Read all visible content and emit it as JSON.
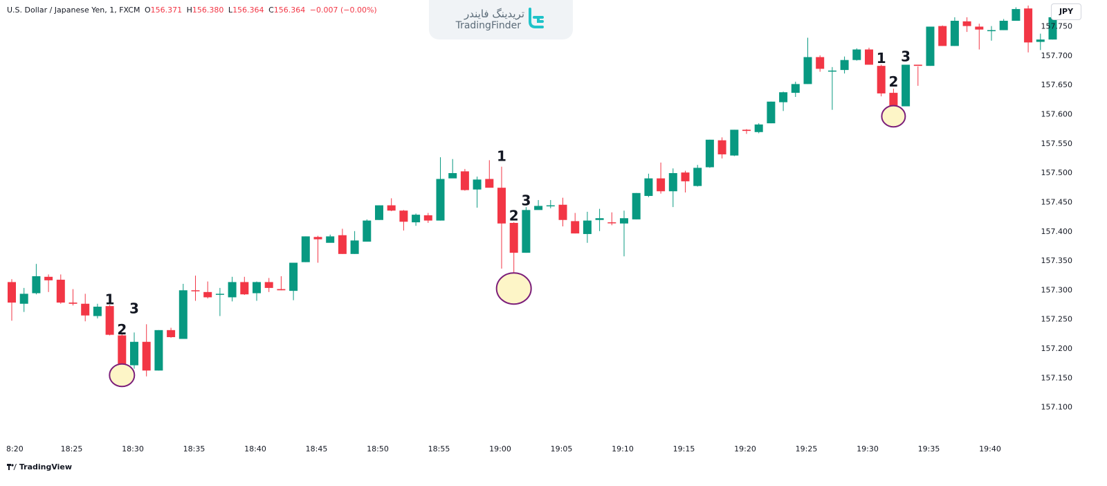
{
  "symbol": {
    "name": "U.S. Dollar / Japanese Yen, 1, FXCM",
    "o_label": "O",
    "o": "156.371",
    "h_label": "H",
    "h": "156.380",
    "l_label": "L",
    "l": "156.364",
    "c_label": "C",
    "c": "156.364",
    "change": "−0.007 (−0.00%)"
  },
  "watermark": {
    "text_fa": "تریدینگ فایندر",
    "text_en": "TradingFinder"
  },
  "currency_label": "JPY",
  "footer": {
    "logo_text": "TradingView"
  },
  "colors": {
    "up": "#089981",
    "down": "#f23645",
    "highlight_fill": "#fdf5c7",
    "highlight_stroke": "#7b1e7a"
  },
  "chart_data": {
    "type": "candlestick",
    "ylim": [
      157.05,
      157.785
    ],
    "y_ticks": [
      "157.100",
      "157.150",
      "157.200",
      "157.250",
      "157.300",
      "157.350",
      "157.400",
      "157.450",
      "157.500",
      "157.550",
      "157.600",
      "157.650",
      "157.700",
      "157.750"
    ],
    "x_ticks": [
      {
        "label": "8:20",
        "index": 0
      },
      {
        "label": "18:25",
        "index": 5
      },
      {
        "label": "18:30",
        "index": 10
      },
      {
        "label": "18:35",
        "index": 15
      },
      {
        "label": "18:40",
        "index": 20
      },
      {
        "label": "18:45",
        "index": 25
      },
      {
        "label": "18:50",
        "index": 30
      },
      {
        "label": "18:55",
        "index": 35
      },
      {
        "label": "19:00",
        "index": 40
      },
      {
        "label": "19:05",
        "index": 45
      },
      {
        "label": "19:10",
        "index": 50
      },
      {
        "label": "19:15",
        "index": 55
      },
      {
        "label": "19:20",
        "index": 60
      },
      {
        "label": "19:25",
        "index": 65
      },
      {
        "label": "19:30",
        "index": 70
      },
      {
        "label": "19:35",
        "index": 75
      },
      {
        "label": "19:40",
        "index": 80
      }
    ],
    "candles": [
      {
        "o": 157.313,
        "h": 157.318,
        "l": 157.247,
        "c": 157.278
      },
      {
        "o": 157.276,
        "h": 157.303,
        "l": 157.262,
        "c": 157.293
      },
      {
        "o": 157.294,
        "h": 157.344,
        "l": 157.292,
        "c": 157.323
      },
      {
        "o": 157.322,
        "h": 157.326,
        "l": 157.296,
        "c": 157.316
      },
      {
        "o": 157.317,
        "h": 157.326,
        "l": 157.276,
        "c": 157.278
      },
      {
        "o": 157.278,
        "h": 157.301,
        "l": 157.273,
        "c": 157.276
      },
      {
        "o": 157.276,
        "h": 157.293,
        "l": 157.246,
        "c": 157.256
      },
      {
        "o": 157.255,
        "h": 157.276,
        "l": 157.251,
        "c": 157.271
      },
      {
        "o": 157.272,
        "h": 157.274,
        "l": 157.222,
        "c": 157.223
      },
      {
        "o": 157.222,
        "h": 157.225,
        "l": 157.165,
        "c": 157.168
      },
      {
        "o": 157.171,
        "h": 157.227,
        "l": 157.165,
        "c": 157.211
      },
      {
        "o": 157.211,
        "h": 157.241,
        "l": 157.152,
        "c": 157.162
      },
      {
        "o": 157.162,
        "h": 157.231,
        "l": 157.162,
        "c": 157.231
      },
      {
        "o": 157.231,
        "h": 157.235,
        "l": 157.218,
        "c": 157.219
      },
      {
        "o": 157.216,
        "h": 157.31,
        "l": 157.216,
        "c": 157.299
      },
      {
        "o": 157.299,
        "h": 157.324,
        "l": 157.281,
        "c": 157.298
      },
      {
        "o": 157.296,
        "h": 157.314,
        "l": 157.285,
        "c": 157.287
      },
      {
        "o": 157.292,
        "h": 157.303,
        "l": 157.255,
        "c": 157.293
      },
      {
        "o": 157.287,
        "h": 157.322,
        "l": 157.28,
        "c": 157.313
      },
      {
        "o": 157.313,
        "h": 157.322,
        "l": 157.291,
        "c": 157.292
      },
      {
        "o": 157.294,
        "h": 157.314,
        "l": 157.281,
        "c": 157.313
      },
      {
        "o": 157.313,
        "h": 157.32,
        "l": 157.296,
        "c": 157.303
      },
      {
        "o": 157.301,
        "h": 157.323,
        "l": 157.299,
        "c": 157.299
      },
      {
        "o": 157.298,
        "h": 157.346,
        "l": 157.282,
        "c": 157.346
      },
      {
        "o": 157.347,
        "h": 157.391,
        "l": 157.347,
        "c": 157.391
      },
      {
        "o": 157.39,
        "h": 157.392,
        "l": 157.346,
        "c": 157.386
      },
      {
        "o": 157.38,
        "h": 157.394,
        "l": 157.381,
        "c": 157.391
      },
      {
        "o": 157.393,
        "h": 157.404,
        "l": 157.361,
        "c": 157.361
      },
      {
        "o": 157.361,
        "h": 157.4,
        "l": 157.361,
        "c": 157.384
      },
      {
        "o": 157.382,
        "h": 157.42,
        "l": 157.382,
        "c": 157.418
      },
      {
        "o": 157.419,
        "h": 157.444,
        "l": 157.419,
        "c": 157.444
      },
      {
        "o": 157.444,
        "h": 157.456,
        "l": 157.434,
        "c": 157.435
      },
      {
        "o": 157.435,
        "h": 157.436,
        "l": 157.401,
        "c": 157.416
      },
      {
        "o": 157.415,
        "h": 157.43,
        "l": 157.409,
        "c": 157.428
      },
      {
        "o": 157.427,
        "h": 157.431,
        "l": 157.414,
        "c": 157.418
      },
      {
        "o": 157.418,
        "h": 157.526,
        "l": 157.418,
        "c": 157.489
      },
      {
        "o": 157.49,
        "h": 157.523,
        "l": 157.491,
        "c": 157.499
      },
      {
        "o": 157.502,
        "h": 157.506,
        "l": 157.469,
        "c": 157.47
      },
      {
        "o": 157.471,
        "h": 157.493,
        "l": 157.44,
        "c": 157.488
      },
      {
        "o": 157.489,
        "h": 157.521,
        "l": 157.475,
        "c": 157.474
      },
      {
        "o": 157.474,
        "h": 157.51,
        "l": 157.336,
        "c": 157.413
      },
      {
        "o": 157.414,
        "h": 157.415,
        "l": 157.299,
        "c": 157.363
      },
      {
        "o": 157.363,
        "h": 157.441,
        "l": 157.363,
        "c": 157.436
      },
      {
        "o": 157.436,
        "h": 157.453,
        "l": 157.437,
        "c": 157.443
      },
      {
        "o": 157.444,
        "h": 157.453,
        "l": 157.439,
        "c": 157.444
      },
      {
        "o": 157.445,
        "h": 157.457,
        "l": 157.408,
        "c": 157.419
      },
      {
        "o": 157.417,
        "h": 157.431,
        "l": 157.396,
        "c": 157.396
      },
      {
        "o": 157.395,
        "h": 157.433,
        "l": 157.38,
        "c": 157.418
      },
      {
        "o": 157.419,
        "h": 157.438,
        "l": 157.4,
        "c": 157.422
      },
      {
        "o": 157.415,
        "h": 157.432,
        "l": 157.41,
        "c": 157.414
      },
      {
        "o": 157.413,
        "h": 157.435,
        "l": 157.357,
        "c": 157.422
      },
      {
        "o": 157.42,
        "h": 157.465,
        "l": 157.42,
        "c": 157.465
      },
      {
        "o": 157.46,
        "h": 157.498,
        "l": 157.458,
        "c": 157.49
      },
      {
        "o": 157.49,
        "h": 157.517,
        "l": 157.464,
        "c": 157.468
      },
      {
        "o": 157.468,
        "h": 157.507,
        "l": 157.441,
        "c": 157.499
      },
      {
        "o": 157.5,
        "h": 157.503,
        "l": 157.466,
        "c": 157.485
      },
      {
        "o": 157.477,
        "h": 157.513,
        "l": 157.476,
        "c": 157.508
      },
      {
        "o": 157.509,
        "h": 157.556,
        "l": 157.508,
        "c": 157.556
      },
      {
        "o": 157.555,
        "h": 157.56,
        "l": 157.524,
        "c": 157.531
      },
      {
        "o": 157.529,
        "h": 157.573,
        "l": 157.528,
        "c": 157.573
      },
      {
        "o": 157.573,
        "h": 157.574,
        "l": 157.566,
        "c": 157.571
      },
      {
        "o": 157.569,
        "h": 157.584,
        "l": 157.567,
        "c": 157.582
      },
      {
        "o": 157.584,
        "h": 157.621,
        "l": 157.584,
        "c": 157.621
      },
      {
        "o": 157.62,
        "h": 157.638,
        "l": 157.605,
        "c": 157.637
      },
      {
        "o": 157.636,
        "h": 157.655,
        "l": 157.629,
        "c": 157.651
      },
      {
        "o": 157.651,
        "h": 157.73,
        "l": 157.651,
        "c": 157.697
      },
      {
        "o": 157.697,
        "h": 157.7,
        "l": 157.672,
        "c": 157.677
      },
      {
        "o": 157.674,
        "h": 157.68,
        "l": 157.607,
        "c": 157.674
      },
      {
        "o": 157.675,
        "h": 157.698,
        "l": 157.669,
        "c": 157.692
      },
      {
        "o": 157.692,
        "h": 157.712,
        "l": 157.691,
        "c": 157.71
      },
      {
        "o": 157.71,
        "h": 157.713,
        "l": 157.684,
        "c": 157.684
      },
      {
        "o": 157.682,
        "h": 157.684,
        "l": 157.63,
        "c": 157.635
      },
      {
        "o": 157.636,
        "h": 157.643,
        "l": 157.601,
        "c": 157.614
      },
      {
        "o": 157.613,
        "h": 157.684,
        "l": 157.614,
        "c": 157.684
      },
      {
        "o": 157.684,
        "h": 157.681,
        "l": 157.648,
        "c": 157.682
      },
      {
        "o": 157.682,
        "h": 157.749,
        "l": 157.682,
        "c": 157.749
      },
      {
        "o": 157.75,
        "h": 157.751,
        "l": 157.716,
        "c": 157.716
      },
      {
        "o": 157.716,
        "h": 157.765,
        "l": 157.716,
        "c": 157.759
      },
      {
        "o": 157.758,
        "h": 157.765,
        "l": 157.74,
        "c": 157.75
      },
      {
        "o": 157.749,
        "h": 157.754,
        "l": 157.71,
        "c": 157.744
      },
      {
        "o": 157.743,
        "h": 157.75,
        "l": 157.725,
        "c": 157.743
      },
      {
        "o": 157.743,
        "h": 157.762,
        "l": 157.743,
        "c": 157.759
      },
      {
        "o": 157.759,
        "h": 157.782,
        "l": 157.759,
        "c": 157.779
      },
      {
        "o": 157.78,
        "h": 157.785,
        "l": 157.705,
        "c": 157.722
      },
      {
        "o": 157.723,
        "h": 157.737,
        "l": 157.709,
        "c": 157.727
      },
      {
        "o": 157.727,
        "h": 157.765,
        "l": 157.727,
        "c": 157.765
      }
    ],
    "annotations": [
      {
        "text": "1",
        "index": 8,
        "price": 157.275
      },
      {
        "text": "2",
        "index": 9,
        "price": 157.224
      },
      {
        "text": "3",
        "index": 10,
        "price": 157.26
      },
      {
        "text": "1",
        "index": 40,
        "price": 157.52
      },
      {
        "text": "2",
        "index": 41,
        "price": 157.418
      },
      {
        "text": "3",
        "index": 42,
        "price": 157.444
      },
      {
        "text": "1",
        "index": 71,
        "price": 157.687
      },
      {
        "text": "2",
        "index": 72,
        "price": 157.647
      },
      {
        "text": "3",
        "index": 73,
        "price": 157.69
      }
    ],
    "highlights": [
      {
        "index": 9,
        "price": 157.154
      },
      {
        "index": 41,
        "price": 157.302
      },
      {
        "index": 72,
        "price": 157.596
      }
    ]
  }
}
